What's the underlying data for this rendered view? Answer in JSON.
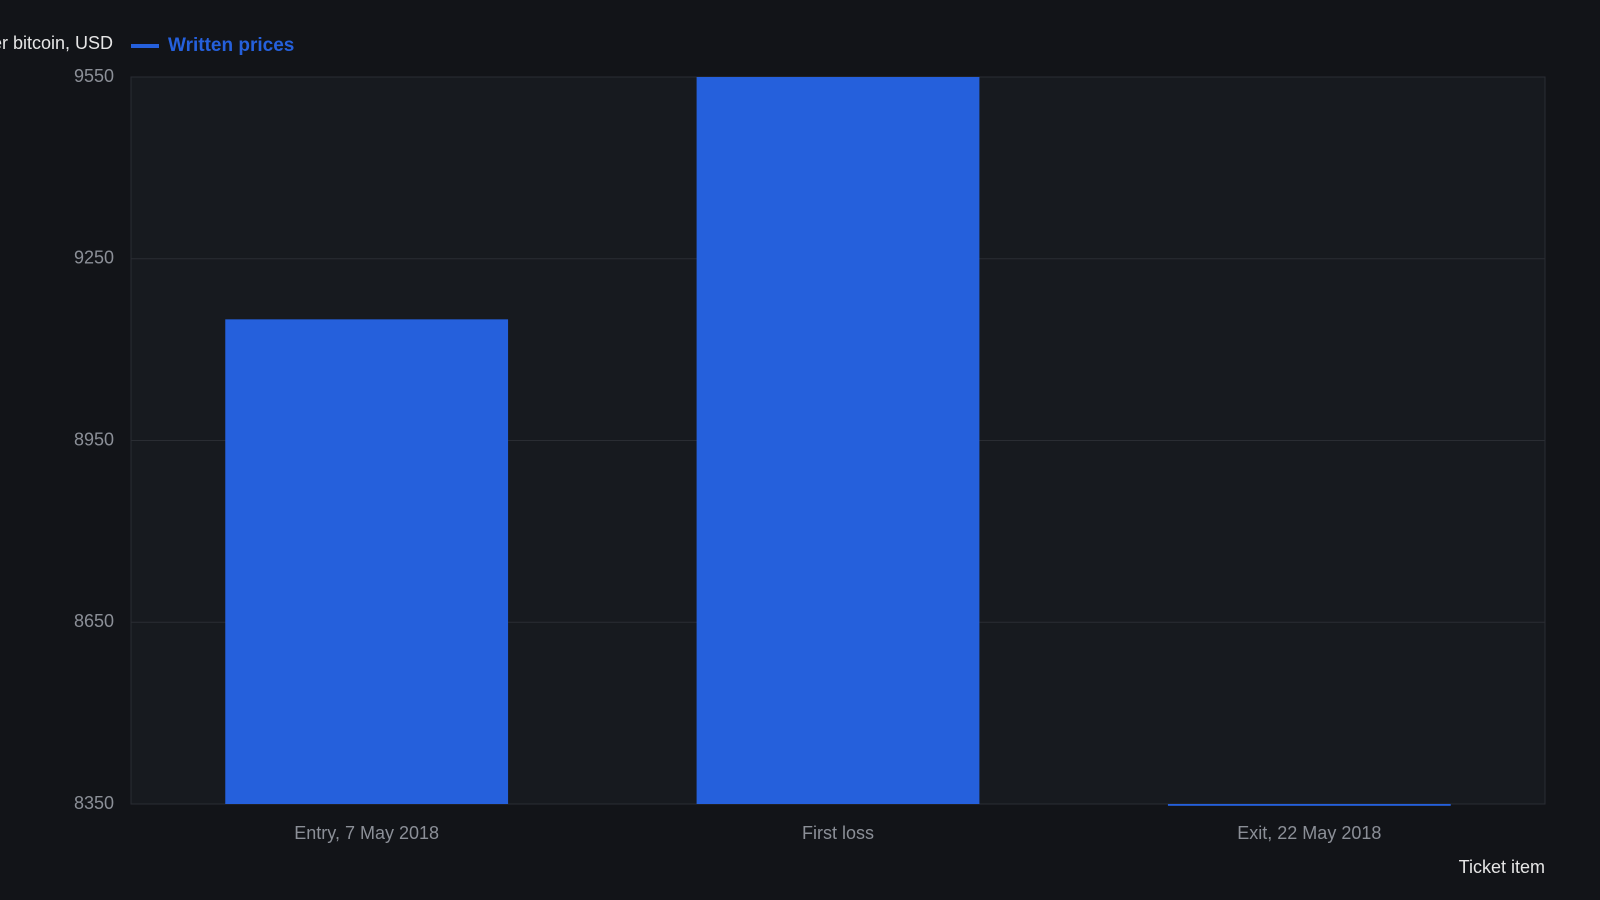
{
  "chart_data": {
    "type": "bar",
    "ylabel": "Price per bitcoin, USD",
    "xlabel": "Ticket item",
    "categories": [
      "Entry, 7 May 2018",
      "First loss",
      "Exit, 22 May 2018"
    ],
    "series": [
      {
        "name": "Written prices",
        "color": "#2560dc",
        "values": [
          9150,
          9550,
          8347
        ]
      }
    ],
    "ylim": [
      8350,
      9550
    ],
    "yticks": [
      8350,
      8650,
      8950,
      9250,
      9550
    ],
    "grid": true,
    "legend": "top-left"
  }
}
